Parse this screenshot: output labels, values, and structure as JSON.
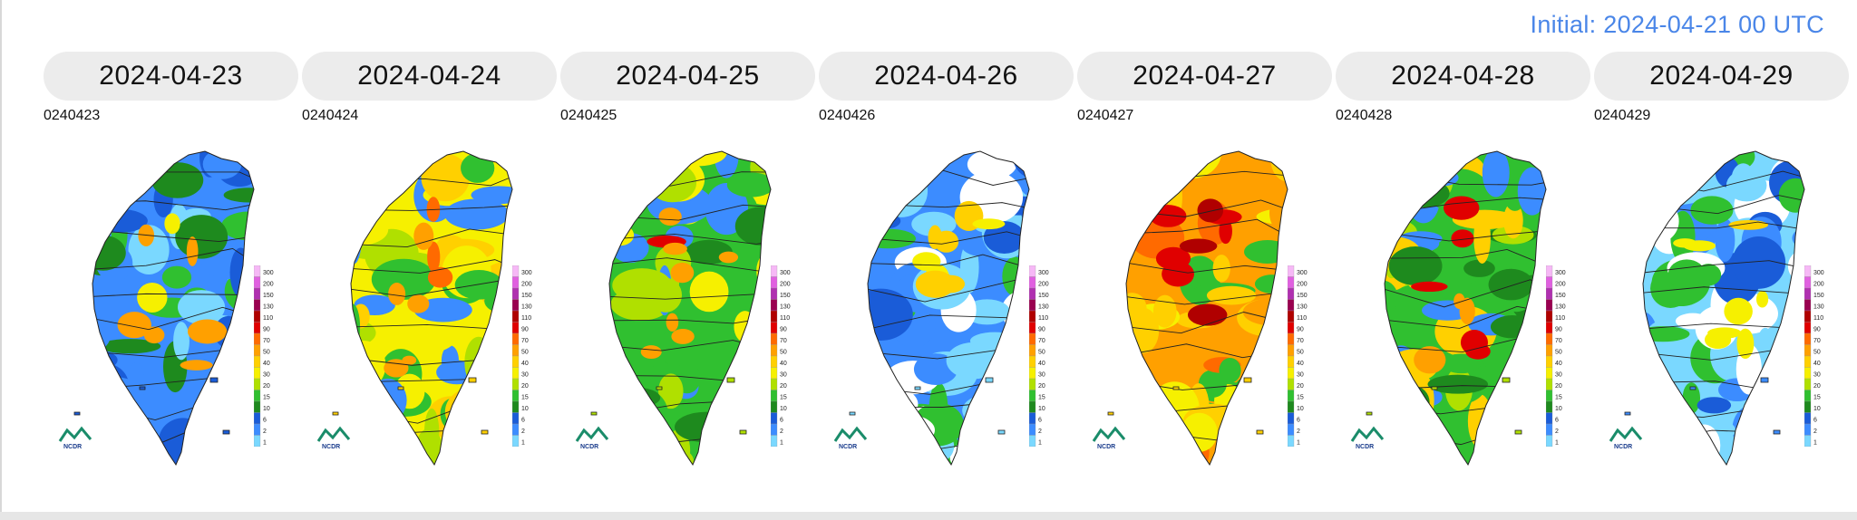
{
  "header": {
    "initial": "Initial: 2024-04-21 00 UTC"
  },
  "scale_labels": [
    "300",
    "200",
    "150",
    "130",
    "110",
    "90",
    "70",
    "50",
    "40",
    "30",
    "20",
    "15",
    "10",
    "6",
    "2",
    "1"
  ],
  "scale_colors": [
    "#f6b8f6",
    "#e060e0",
    "#b030b0",
    "#9a0050",
    "#b00000",
    "#e00000",
    "#ff6a00",
    "#ffa000",
    "#ffd000",
    "#f6f000",
    "#b0e000",
    "#30c030",
    "#1e8a1e",
    "#1a5cd8",
    "#3c8cff",
    "#7ad8ff"
  ],
  "logo_text": "NCDR",
  "panels": [
    {
      "date": "2024-04-23",
      "code": "0240423",
      "palette": [
        "#3c8cff",
        "#1a5cd8",
        "#7ad8ff",
        "#30c030",
        "#1e8a1e"
      ],
      "blobs": [
        "#f6f000",
        "#ffa000"
      ]
    },
    {
      "date": "2024-04-24",
      "code": "0240424",
      "palette": [
        "#f6f000",
        "#ffd000",
        "#b0e000",
        "#30c030",
        "#3c8cff"
      ],
      "blobs": [
        "#ffa000",
        "#ff6a00"
      ]
    },
    {
      "date": "2024-04-25",
      "code": "0240425",
      "palette": [
        "#30c030",
        "#b0e000",
        "#f6f000",
        "#3c8cff",
        "#1e8a1e"
      ],
      "blobs": [
        "#ffa000",
        "#e00000"
      ]
    },
    {
      "date": "2024-04-26",
      "code": "0240426",
      "palette": [
        "#3c8cff",
        "#7ad8ff",
        "#30c030",
        "#1a5cd8",
        "#ffffff"
      ],
      "blobs": [
        "#f6f000",
        "#ffd000"
      ]
    },
    {
      "date": "2024-04-27",
      "code": "0240427",
      "palette": [
        "#ffa000",
        "#ffd000",
        "#ff6a00",
        "#f6f000",
        "#30c030"
      ],
      "blobs": [
        "#e00000",
        "#b00000"
      ]
    },
    {
      "date": "2024-04-28",
      "code": "0240428",
      "palette": [
        "#30c030",
        "#b0e000",
        "#ffd000",
        "#3c8cff",
        "#1e8a1e"
      ],
      "blobs": [
        "#e00000",
        "#ffa000"
      ]
    },
    {
      "date": "2024-04-29",
      "code": "0240429",
      "palette": [
        "#7ad8ff",
        "#3c8cff",
        "#1a5cd8",
        "#30c030",
        "#ffffff"
      ],
      "blobs": [
        "#f6f000",
        "#ffd000"
      ]
    }
  ]
}
